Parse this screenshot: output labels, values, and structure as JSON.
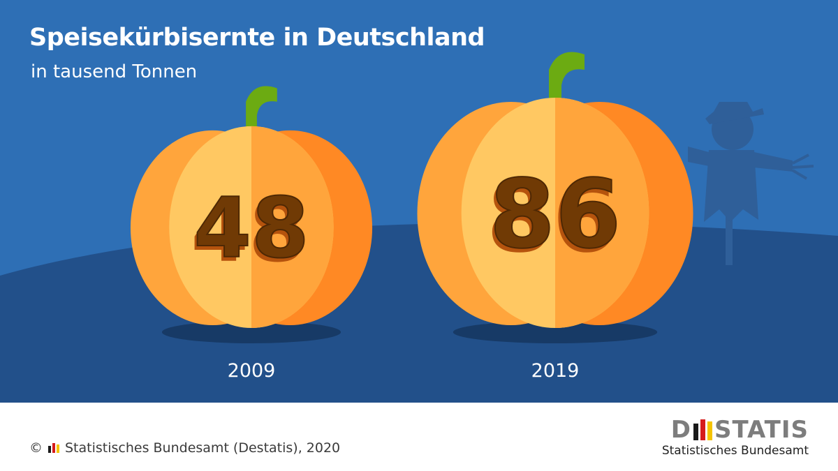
{
  "header": {
    "title": "Speisekürbisernte in Deutschland",
    "subtitle": "in tausend Tonnen"
  },
  "chart_data": {
    "type": "bar",
    "title": "Speisekürbisernte in Deutschland",
    "subtitle": "in tausend Tonnen",
    "unit": "tausend Tonnen",
    "categories": [
      "2009",
      "2019"
    ],
    "values": [
      48,
      86
    ],
    "value_labels": [
      "48",
      "86"
    ],
    "mark": "pumpkin"
  },
  "footer": {
    "copyright_symbol": "©",
    "copyright_text": "Statistisches Bundesamt (Destatis), 2020",
    "logo_left": "D",
    "logo_right": "STATIS",
    "logo_sub": "Statistisches Bundesamt"
  },
  "colors": {
    "sky": "#2e6fb5",
    "ground": "#22508a",
    "pumpkin_light": "#ffc862",
    "pumpkin_mid": "#ffa53c",
    "pumpkin_dark": "#ff8924",
    "stem": "#6cab12",
    "carving": "#703a05",
    "scarecrow": "#2f5f99",
    "logo_black": "#1a1a1a",
    "logo_red": "#d61c1c",
    "logo_gold": "#f5c400"
  }
}
